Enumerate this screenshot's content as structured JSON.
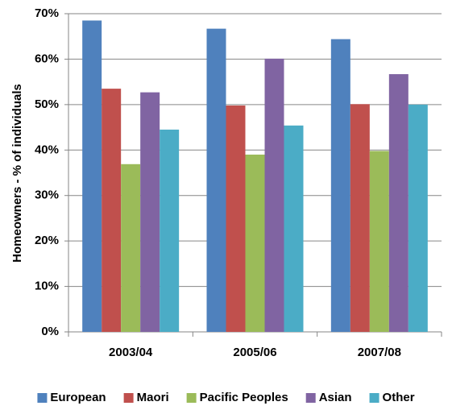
{
  "chart_data": {
    "type": "bar",
    "y_axis_label": "Homeowners - % of individuals",
    "categories": [
      "2003/04",
      "2005/06",
      "2007/08"
    ],
    "series": [
      {
        "name": "European",
        "color": "#4f81bd",
        "values": [
          68.5,
          66.7,
          64.4
        ]
      },
      {
        "name": "Maori",
        "color": "#c0504d",
        "values": [
          53.5,
          49.8,
          50.1
        ]
      },
      {
        "name": "Pacific Peoples",
        "color": "#9bbb59",
        "values": [
          36.9,
          39.0,
          39.8
        ]
      },
      {
        "name": "Asian",
        "color": "#8064a2",
        "values": [
          52.7,
          60.1,
          56.7
        ]
      },
      {
        "name": "Other",
        "color": "#4bacc6",
        "values": [
          44.5,
          45.4,
          50.0
        ]
      }
    ],
    "ylim": [
      0,
      70
    ],
    "yticks": [
      {
        "value": 0,
        "label": "0%"
      },
      {
        "value": 10,
        "label": "10%"
      },
      {
        "value": 20,
        "label": "20%"
      },
      {
        "value": 30,
        "label": "30%"
      },
      {
        "value": 40,
        "label": "40%"
      },
      {
        "value": 50,
        "label": "50%"
      },
      {
        "value": 60,
        "label": "60%"
      },
      {
        "value": 70,
        "label": "70%"
      }
    ],
    "grid": true,
    "legend": "bottom"
  }
}
